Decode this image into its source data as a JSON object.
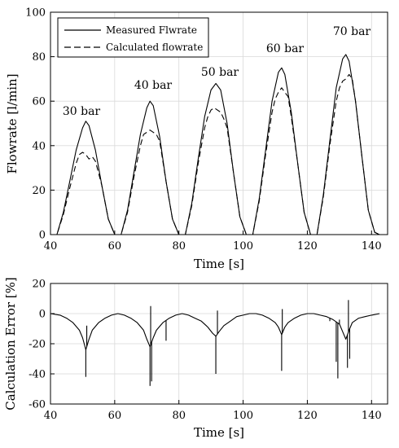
{
  "chart_data": [
    {
      "type": "line",
      "xlabel": "Time [s]",
      "ylabel": "Flowrate [l/min]",
      "xlim": [
        40,
        145
      ],
      "ylim": [
        0,
        100
      ],
      "xticks": [
        "40",
        "60",
        "80",
        "100",
        "120",
        "140"
      ],
      "yticks": [
        "0",
        "20",
        "40",
        "60",
        "80",
        "100"
      ],
      "grid": true,
      "legend_position": "top-left",
      "annotations": [
        "30 bar",
        "40 bar",
        "50 bar",
        "60 bar",
        "70 bar"
      ],
      "series": [
        {
          "name": "Measured Flwrate",
          "style": "solid",
          "x": [
            40,
            42,
            44,
            46,
            48,
            50,
            51,
            52,
            54,
            56,
            58,
            60,
            61,
            62,
            64,
            66,
            68,
            70,
            71,
            72,
            74,
            76,
            78,
            80,
            81,
            82,
            84,
            86,
            88,
            90,
            91.5,
            93,
            95,
            97,
            99,
            101,
            102,
            103,
            105,
            107,
            109,
            111,
            112,
            113,
            115,
            117,
            119,
            121,
            122,
            123,
            125,
            127,
            129,
            131,
            132,
            133,
            135,
            137,
            139,
            141,
            142.5
          ],
          "y": [
            0,
            0,
            10,
            24,
            38,
            48,
            51,
            49,
            38,
            22,
            7,
            0,
            0,
            0,
            11,
            28,
            45,
            57,
            60,
            58,
            44,
            24,
            7,
            0,
            0,
            0,
            14,
            34,
            53,
            65,
            68,
            65,
            50,
            28,
            8,
            0,
            0,
            0,
            16,
            38,
            60,
            73,
            75,
            72,
            55,
            32,
            10,
            0,
            0,
            0,
            18,
            42,
            66,
            79,
            81,
            78,
            60,
            35,
            11,
            1,
            0
          ]
        },
        {
          "name": "Calculated flowrate",
          "style": "dashed",
          "x": [
            40,
            42,
            44,
            46,
            48,
            49,
            50,
            51,
            52,
            53,
            54,
            56,
            58,
            60,
            61,
            62,
            64,
            66,
            68,
            69,
            70,
            71,
            72,
            73,
            74,
            76,
            78,
            80,
            81,
            82,
            84,
            86,
            88,
            89,
            90,
            91,
            92,
            93,
            94,
            95,
            97,
            99,
            101,
            102,
            103,
            105,
            107,
            109,
            110,
            111,
            112,
            113,
            114,
            115,
            117,
            119,
            121,
            122,
            123,
            125,
            127,
            129,
            130,
            131,
            132,
            133,
            134,
            135,
            137,
            139,
            141,
            142.5
          ],
          "y": [
            0,
            0,
            9,
            21,
            32,
            36,
            37,
            36,
            34,
            35,
            33,
            22,
            7,
            0,
            0,
            0,
            10,
            26,
            40,
            45,
            46,
            47,
            46,
            45,
            42,
            24,
            7,
            0,
            0,
            0,
            13,
            32,
            48,
            53,
            56,
            57,
            56,
            55,
            52,
            48,
            28,
            8,
            0,
            0,
            0,
            15,
            36,
            55,
            61,
            64,
            66,
            64,
            62,
            53,
            32,
            10,
            0,
            0,
            0,
            17,
            40,
            60,
            66,
            69,
            70,
            72,
            70,
            60,
            35,
            11,
            1,
            0
          ]
        }
      ]
    },
    {
      "type": "line",
      "xlabel": "Time [s]",
      "ylabel": "Calculation Error [%]",
      "xlim": [
        40,
        145
      ],
      "ylim": [
        -60,
        20
      ],
      "xticks": [
        "40",
        "60",
        "80",
        "100",
        "120",
        "140"
      ],
      "yticks": [
        "-60",
        "-40",
        "-20",
        "0",
        "20"
      ],
      "grid": true,
      "series": [
        {
          "style": "solid",
          "x": [
            40,
            43,
            45,
            47,
            49,
            50,
            51,
            52,
            53,
            55,
            57,
            59,
            61,
            63,
            65,
            67,
            69,
            70,
            71,
            72,
            73,
            75,
            77,
            79,
            81,
            83,
            85,
            87,
            89,
            90.5,
            91.5,
            92.5,
            94,
            96,
            98,
            100,
            102,
            104,
            106,
            108,
            110,
            111,
            112,
            113,
            114,
            116,
            118,
            120,
            122,
            124,
            126,
            128,
            130,
            131,
            132,
            133,
            134,
            136,
            138,
            140,
            142.5
          ],
          "y": [
            0,
            -1,
            -3,
            -6,
            -11,
            -16,
            -24,
            -17,
            -11,
            -6,
            -3,
            -1,
            0,
            -1,
            -3,
            -6,
            -11,
            -17,
            -22,
            -16,
            -11,
            -6,
            -3,
            -1,
            0,
            -1,
            -3,
            -5,
            -9,
            -13,
            -15,
            -12,
            -8,
            -5,
            -2,
            -1,
            0,
            0,
            -1,
            -3,
            -6,
            -9,
            -14,
            -9,
            -6,
            -3,
            -1,
            0,
            0,
            -1,
            -2,
            -4,
            -7,
            -12,
            -17,
            -11,
            -6,
            -3,
            -2,
            -1,
            0
          ],
          "spikes": [
            [
              51,
              -42
            ],
            [
              51.3,
              -8
            ],
            [
              71,
              -48
            ],
            [
              71.2,
              5
            ],
            [
              71.5,
              -45
            ],
            [
              76,
              -18
            ],
            [
              91.5,
              -40
            ],
            [
              92,
              2
            ],
            [
              112,
              -38
            ],
            [
              112.2,
              3
            ],
            [
              127,
              -5
            ],
            [
              129,
              -32
            ],
            [
              129.5,
              -43
            ],
            [
              130,
              -4
            ],
            [
              132.5,
              -36
            ],
            [
              132.8,
              9
            ],
            [
              133.2,
              -30
            ]
          ]
        }
      ]
    }
  ]
}
